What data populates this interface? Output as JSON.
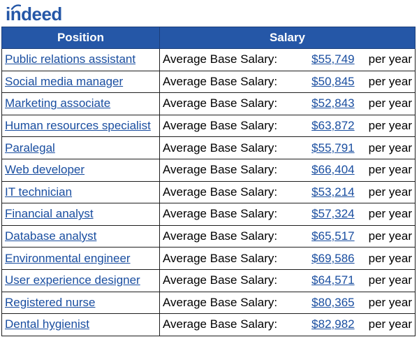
{
  "logo": {
    "text": "indeed",
    "icon": "indeed-logo-arc-icon",
    "color": "#2557a7"
  },
  "table": {
    "headers": {
      "position": "Position",
      "salary": "Salary"
    },
    "header_color": "#2557a7",
    "link_color": "#1a4ea0",
    "rows": [
      {
        "position": "Public relations assistant",
        "label": "Average Base Salary:",
        "amount": "$55,749",
        "unit": "per year"
      },
      {
        "position": "Social media manager",
        "label": "Average Base Salary:",
        "amount": "$50,845",
        "unit": "per year"
      },
      {
        "position": "Marketing associate",
        "label": "Average Base Salary:",
        "amount": "$52,843",
        "unit": "per year"
      },
      {
        "position": "Human resources specialist",
        "label": "Average Base Salary:",
        "amount": "$63,872",
        "unit": "per year"
      },
      {
        "position": "Paralegal",
        "label": "Average Base Salary:",
        "amount": "$55,791",
        "unit": "per year"
      },
      {
        "position": "Web developer",
        "label": "Average Base Salary:",
        "amount": "$66,404",
        "unit": "per year"
      },
      {
        "position": "IT technician",
        "label": "Average Base Salary:",
        "amount": "$53,214",
        "unit": "per year"
      },
      {
        "position": "Financial analyst",
        "label": "Average Base Salary:",
        "amount": "$57,324",
        "unit": "per year"
      },
      {
        "position": "Database analyst",
        "label": "Average Base Salary:",
        "amount": "$65,517",
        "unit": "per year"
      },
      {
        "position": "Environmental engineer",
        "label": "Average Base Salary:",
        "amount": "$69,586",
        "unit": "per year"
      },
      {
        "position": "User experience designer",
        "label": "Average Base Salary:",
        "amount": "$64,571",
        "unit": "per year"
      },
      {
        "position": "Registered nurse",
        "label": "Average Base Salary:",
        "amount": "$80,365",
        "unit": "per year"
      },
      {
        "position": "Dental hygienist",
        "label": "Average Base Salary:",
        "amount": "$82,982",
        "unit": "per year"
      }
    ]
  }
}
